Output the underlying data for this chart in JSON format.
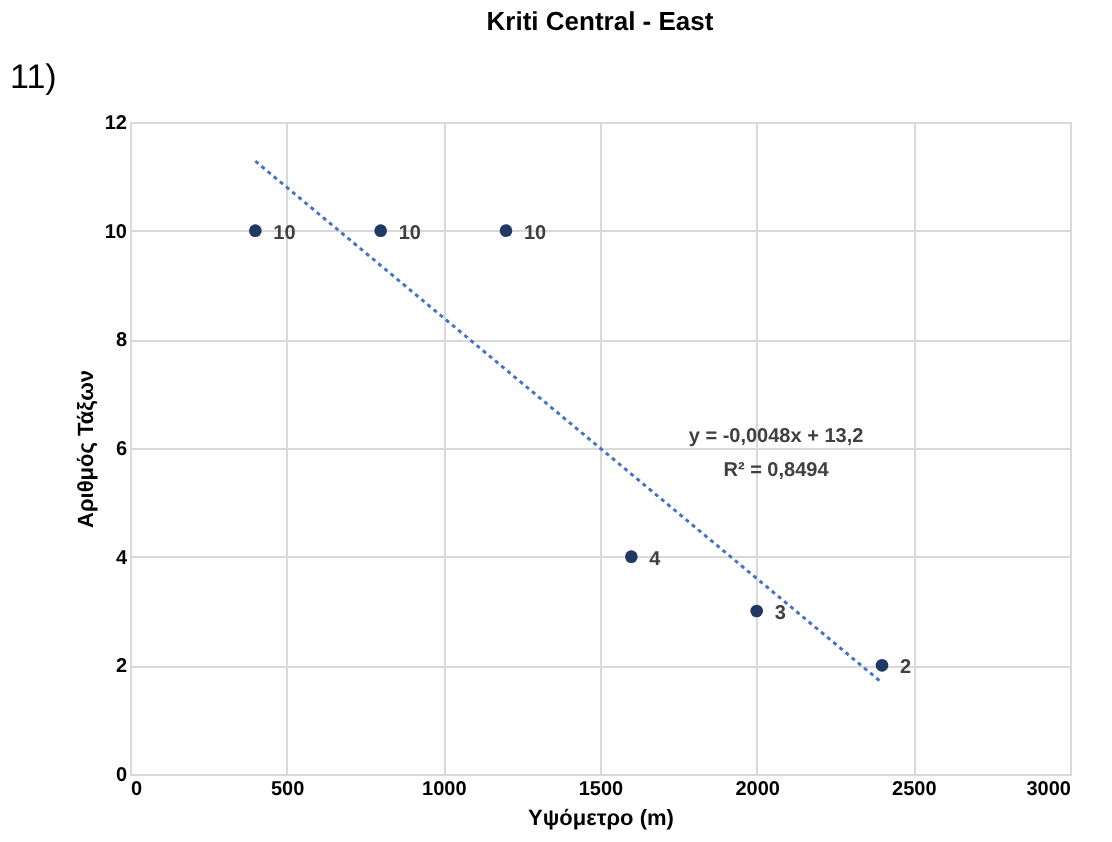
{
  "chart_data": {
    "type": "scatter",
    "title": "Kriti Central - East",
    "xlabel": "Υψόμετρο (m)",
    "ylabel": "Αριθμός Τάξων",
    "x": [
      400,
      800,
      1200,
      1600,
      2000,
      2400
    ],
    "series": [
      {
        "color": "#1f3864",
        "values": [
          10,
          10,
          10,
          4,
          3,
          2
        ],
        "value_labels": [
          "10",
          "10",
          "10",
          "4",
          "3",
          "2"
        ]
      },
      {
        "type": "line",
        "color": "#4472c4",
        "line_style": "dotted",
        "marker": "none",
        "x": [
          400,
          2400
        ],
        "values": [
          11.28,
          1.68
        ]
      }
    ],
    "xlim": [
      0,
      3000
    ],
    "xticks": [
      0,
      500,
      1000,
      1500,
      2000,
      2500,
      3000
    ],
    "ylim": [
      0,
      12
    ],
    "yticks": [
      0,
      2,
      4,
      6,
      8,
      10,
      12
    ],
    "grid": true,
    "marker": "circle",
    "annotations": [
      "11)",
      "y = -0,0048x + 13,2",
      "R² = 0,8494"
    ]
  }
}
